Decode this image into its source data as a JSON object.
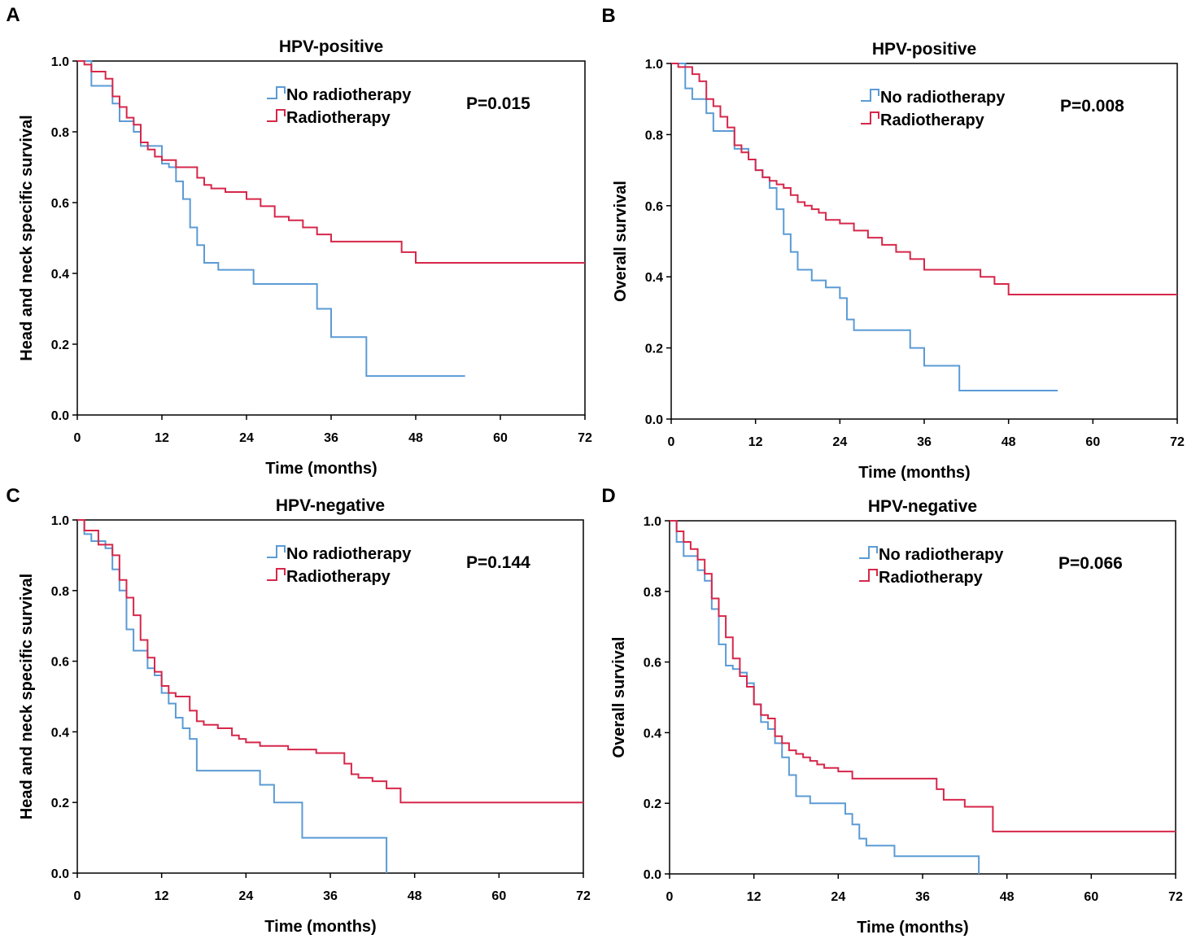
{
  "figure": {
    "caption": ""
  },
  "colors": {
    "no_radiotherapy": "#5b9bd5",
    "radiotherapy": "#d6274a",
    "axis": "#000000"
  },
  "chart_data": [
    {
      "panel": "A",
      "type": "line",
      "step": true,
      "title": "HPV-positive",
      "xlabel": "Time (months)",
      "ylabel": "Head and neck specific survival",
      "xlim": [
        0,
        72
      ],
      "ylim": [
        0,
        1
      ],
      "xticks": [
        0,
        12,
        24,
        36,
        48,
        60,
        72
      ],
      "yticks": [
        "0.0",
        "0.2",
        "0.4",
        "0.6",
        "0.8",
        "1.0"
      ],
      "p_value": "P=0.015",
      "legend": {
        "position": "top-center",
        "entries": [
          "No radiotherapy",
          "Radiotherapy"
        ]
      },
      "series": [
        {
          "name": "No radiotherapy",
          "color": "#5b9bd5",
          "x": [
            0,
            2,
            5,
            6,
            8,
            9,
            12,
            13,
            14,
            15,
            16,
            17,
            18,
            20,
            25,
            34,
            36,
            41,
            55
          ],
          "y": [
            1.0,
            0.93,
            0.88,
            0.83,
            0.8,
            0.76,
            0.71,
            0.7,
            0.66,
            0.61,
            0.53,
            0.48,
            0.43,
            0.41,
            0.37,
            0.3,
            0.22,
            0.11,
            0.11
          ]
        },
        {
          "name": "Radiotherapy",
          "color": "#d6274a",
          "x": [
            0,
            1,
            2,
            4,
            5,
            6,
            7,
            8,
            9,
            10,
            11,
            12,
            14,
            17,
            18,
            19,
            20,
            21,
            22,
            24,
            26,
            28,
            30,
            32,
            34,
            36,
            42,
            46,
            48,
            72
          ],
          "y": [
            1.0,
            0.99,
            0.97,
            0.95,
            0.9,
            0.87,
            0.84,
            0.82,
            0.77,
            0.75,
            0.73,
            0.72,
            0.7,
            0.67,
            0.65,
            0.64,
            0.64,
            0.63,
            0.63,
            0.61,
            0.59,
            0.56,
            0.55,
            0.53,
            0.51,
            0.49,
            0.49,
            0.46,
            0.43,
            0.43
          ]
        }
      ]
    },
    {
      "panel": "B",
      "type": "line",
      "step": true,
      "title": "HPV-positive",
      "xlabel": "Time (months)",
      "ylabel": "Overall survival",
      "xlim": [
        0,
        72
      ],
      "ylim": [
        0,
        1
      ],
      "xticks": [
        0,
        12,
        24,
        36,
        48,
        60,
        72
      ],
      "yticks": [
        "0.0",
        "0.2",
        "0.4",
        "0.6",
        "0.8",
        "1.0"
      ],
      "p_value": "P=0.008",
      "legend": {
        "position": "top-center",
        "entries": [
          "No radiotherapy",
          "Radiotherapy"
        ]
      },
      "series": [
        {
          "name": "No radiotherapy",
          "color": "#5b9bd5",
          "x": [
            0,
            2,
            3,
            5,
            6,
            9,
            11,
            12,
            13,
            14,
            15,
            16,
            17,
            18,
            20,
            22,
            24,
            25,
            26,
            34,
            36,
            41,
            55
          ],
          "y": [
            1.0,
            0.93,
            0.9,
            0.86,
            0.81,
            0.76,
            0.73,
            0.7,
            0.68,
            0.65,
            0.59,
            0.52,
            0.47,
            0.42,
            0.39,
            0.37,
            0.34,
            0.28,
            0.25,
            0.2,
            0.15,
            0.08,
            0.08
          ]
        },
        {
          "name": "Radiotherapy",
          "color": "#d6274a",
          "x": [
            0,
            1,
            3,
            4,
            5,
            6,
            7,
            8,
            9,
            10,
            11,
            12,
            13,
            14,
            15,
            16,
            17,
            18,
            19,
            20,
            21,
            22,
            24,
            26,
            28,
            30,
            32,
            34,
            36,
            42,
            44,
            46,
            48,
            72
          ],
          "y": [
            1.0,
            0.99,
            0.97,
            0.95,
            0.9,
            0.88,
            0.85,
            0.82,
            0.77,
            0.75,
            0.73,
            0.7,
            0.68,
            0.67,
            0.66,
            0.65,
            0.63,
            0.61,
            0.6,
            0.59,
            0.58,
            0.56,
            0.55,
            0.53,
            0.51,
            0.49,
            0.47,
            0.45,
            0.42,
            0.42,
            0.4,
            0.38,
            0.35,
            0.35
          ]
        }
      ]
    },
    {
      "panel": "C",
      "type": "line",
      "step": true,
      "title": "HPV-negative",
      "xlabel": "Time (months)",
      "ylabel": "Head and neck specific survival",
      "xlim": [
        0,
        72
      ],
      "ylim": [
        0,
        1
      ],
      "xticks": [
        0,
        12,
        24,
        36,
        48,
        60,
        72
      ],
      "yticks": [
        "0.0",
        "0.2",
        "0.4",
        "0.6",
        "0.8",
        "1.0"
      ],
      "p_value": "P=0.144",
      "legend": {
        "position": "top-center",
        "entries": [
          "No radiotherapy",
          "Radiotherapy"
        ]
      },
      "series": [
        {
          "name": "No radiotherapy",
          "color": "#5b9bd5",
          "x": [
            0,
            1,
            2,
            4,
            5,
            6,
            7,
            8,
            10,
            11,
            12,
            13,
            14,
            15,
            16,
            17,
            26,
            28,
            32,
            44,
            44
          ],
          "y": [
            1.0,
            0.96,
            0.94,
            0.92,
            0.86,
            0.8,
            0.69,
            0.63,
            0.58,
            0.56,
            0.51,
            0.48,
            0.44,
            0.41,
            0.38,
            0.29,
            0.25,
            0.2,
            0.1,
            0.1,
            0.0
          ]
        },
        {
          "name": "Radiotherapy",
          "color": "#d6274a",
          "x": [
            0,
            1,
            3,
            5,
            6,
            7,
            8,
            9,
            10,
            11,
            12,
            13,
            14,
            16,
            17,
            18,
            20,
            22,
            23,
            24,
            26,
            30,
            34,
            38,
            39,
            40,
            42,
            44,
            46,
            72
          ],
          "y": [
            1.0,
            0.97,
            0.93,
            0.9,
            0.83,
            0.78,
            0.73,
            0.66,
            0.61,
            0.57,
            0.53,
            0.51,
            0.5,
            0.46,
            0.43,
            0.42,
            0.41,
            0.39,
            0.38,
            0.37,
            0.36,
            0.35,
            0.34,
            0.31,
            0.28,
            0.27,
            0.26,
            0.24,
            0.2,
            0.2
          ]
        }
      ]
    },
    {
      "panel": "D",
      "type": "line",
      "step": true,
      "title": "HPV-negative",
      "xlabel": "Time (months)",
      "ylabel": "Overall survival",
      "xlim": [
        0,
        72
      ],
      "ylim": [
        0,
        1
      ],
      "xticks": [
        0,
        12,
        24,
        36,
        48,
        60,
        72
      ],
      "yticks": [
        "0.0",
        "0.2",
        "0.4",
        "0.6",
        "0.8",
        "1.0"
      ],
      "p_value": "P=0.066",
      "legend": {
        "position": "top-center",
        "entries": [
          "No radiotherapy",
          "Radiotherapy"
        ]
      },
      "series": [
        {
          "name": "No radiotherapy",
          "color": "#5b9bd5",
          "x": [
            0,
            1,
            2,
            4,
            5,
            6,
            7,
            8,
            9,
            10,
            11,
            12,
            13,
            14,
            15,
            16,
            17,
            18,
            20,
            25,
            26,
            27,
            28,
            32,
            38,
            44,
            44
          ],
          "y": [
            1.0,
            0.94,
            0.9,
            0.86,
            0.83,
            0.75,
            0.65,
            0.59,
            0.58,
            0.57,
            0.54,
            0.48,
            0.43,
            0.41,
            0.37,
            0.33,
            0.28,
            0.22,
            0.2,
            0.17,
            0.14,
            0.1,
            0.08,
            0.05,
            0.05,
            0.04,
            0.0
          ]
        },
        {
          "name": "Radiotherapy",
          "color": "#d6274a",
          "x": [
            0,
            1,
            2,
            3,
            4,
            5,
            6,
            7,
            8,
            9,
            10,
            11,
            12,
            13,
            14,
            15,
            16,
            17,
            18,
            19,
            20,
            21,
            22,
            24,
            26,
            30,
            34,
            38,
            39,
            40,
            42,
            44,
            46,
            72
          ],
          "y": [
            1.0,
            0.97,
            0.94,
            0.92,
            0.89,
            0.85,
            0.78,
            0.73,
            0.67,
            0.61,
            0.56,
            0.53,
            0.48,
            0.45,
            0.44,
            0.39,
            0.37,
            0.35,
            0.34,
            0.33,
            0.32,
            0.31,
            0.3,
            0.29,
            0.27,
            0.27,
            0.27,
            0.24,
            0.21,
            0.21,
            0.19,
            0.19,
            0.12,
            0.12
          ]
        }
      ]
    }
  ]
}
